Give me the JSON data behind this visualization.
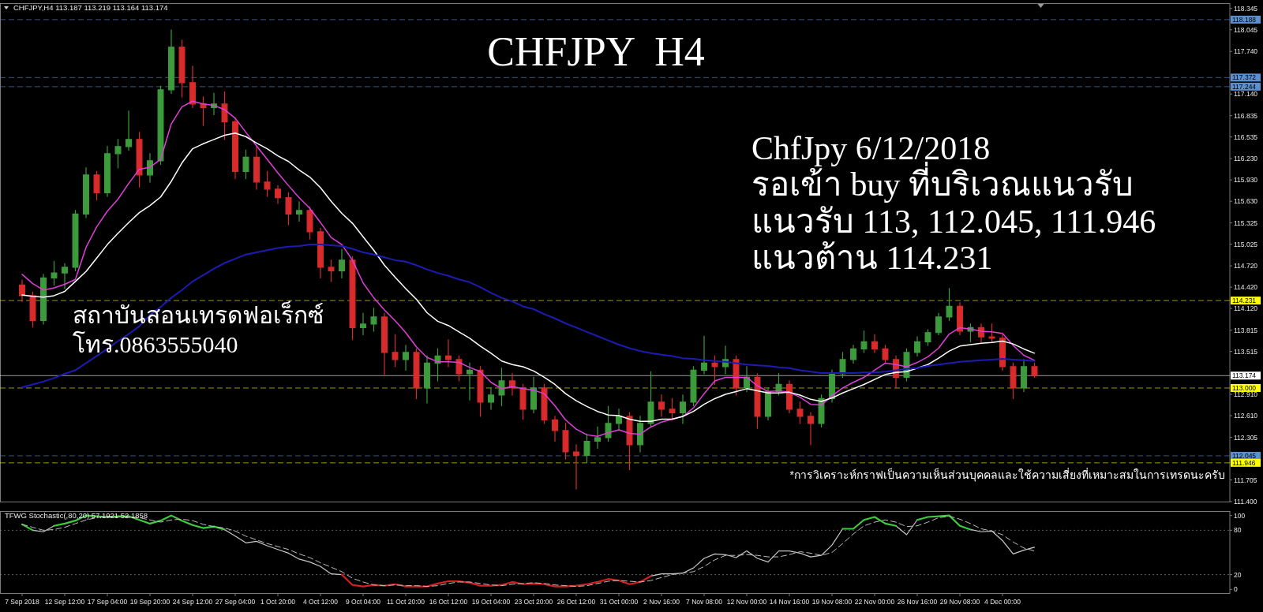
{
  "chart_data": [
    {
      "type": "candlestick",
      "title": "CHFJPY  H4",
      "annotations": [
        "CHFJPY,H4 113.187 113.219 113.164 113.174",
        "ChfJpy 6/12/2018",
        "รอเข้า buy ที่บริเวณแนวรับ",
        "แนวรับ 113, 112.045, 111.946",
        "แนวต้าน 114.231",
        "สถาบันสอนเทรดฟอเร็กซ์",
        "โทร.0863555040",
        "*การวิเคราะห์กราฟเป็นความเห็นส่วนบุคคลและใช้ความเสี่ยงที่เหมาะสมในการเทรดนะครับ"
      ],
      "categories": [
        null,
        null,
        null,
        null,
        null,
        null,
        null,
        null,
        null,
        null,
        null,
        null,
        null,
        null,
        null,
        null,
        null,
        null,
        null,
        null,
        null,
        null,
        null,
        null,
        null,
        null,
        null,
        null,
        null,
        null,
        null,
        null,
        null,
        null,
        null,
        null,
        null,
        null,
        null,
        null,
        null,
        null,
        null,
        null,
        null,
        null,
        null,
        null,
        null,
        null,
        null,
        null,
        null,
        null,
        null,
        null,
        null,
        null,
        null,
        null,
        null,
        null,
        null,
        null,
        null,
        null,
        null,
        null,
        null,
        null,
        null,
        null,
        null,
        null,
        null,
        null,
        null,
        null,
        null,
        null,
        null,
        null,
        null,
        null,
        null,
        null,
        null,
        null,
        null,
        null,
        null,
        null,
        null,
        null,
        null,
        null
      ],
      "ohlc": [
        [
          114.45,
          114.52,
          114.22,
          114.3
        ],
        [
          114.3,
          114.35,
          113.86,
          113.95
        ],
        [
          113.95,
          114.6,
          113.9,
          114.55
        ],
        [
          114.55,
          114.78,
          114.45,
          114.62
        ],
        [
          114.62,
          114.75,
          114.4,
          114.7
        ],
        [
          114.7,
          115.5,
          114.65,
          115.45
        ],
        [
          115.45,
          116.1,
          115.4,
          116.0
        ],
        [
          116.0,
          116.05,
          115.65,
          115.75
        ],
        [
          115.75,
          116.4,
          115.7,
          116.3
        ],
        [
          116.3,
          116.5,
          116.1,
          116.4
        ],
        [
          116.4,
          116.9,
          116.35,
          116.5
        ],
        [
          116.5,
          116.6,
          115.83,
          116.0
        ],
        [
          116.0,
          116.3,
          115.9,
          116.2
        ],
        [
          116.2,
          117.25,
          116.15,
          117.2
        ],
        [
          117.2,
          118.04,
          117.15,
          117.8
        ],
        [
          117.8,
          117.9,
          117.1,
          117.3
        ],
        [
          117.3,
          117.53,
          116.95,
          117.0
        ],
        [
          117.0,
          117.1,
          116.7,
          116.95
        ],
        [
          116.95,
          117.15,
          116.85,
          117.0
        ],
        [
          117.0,
          117.17,
          116.5,
          116.75
        ],
        [
          116.75,
          116.8,
          115.95,
          116.05
        ],
        [
          116.05,
          116.35,
          115.95,
          116.25
        ],
        [
          116.25,
          116.4,
          115.8,
          115.9
        ],
        [
          115.9,
          116.05,
          115.7,
          115.8
        ],
        [
          115.8,
          115.85,
          115.6,
          115.68
        ],
        [
          115.68,
          115.75,
          115.3,
          115.45
        ],
        [
          115.45,
          115.62,
          115.35,
          115.5
        ],
        [
          115.5,
          115.55,
          115.1,
          115.2
        ],
        [
          115.2,
          115.25,
          114.55,
          114.7
        ],
        [
          114.7,
          114.8,
          114.5,
          114.65
        ],
        [
          114.65,
          114.95,
          114.55,
          114.8
        ],
        [
          114.8,
          114.85,
          113.68,
          113.85
        ],
        [
          113.85,
          114.05,
          113.75,
          113.9
        ],
        [
          113.9,
          114.12,
          113.8,
          114.0
        ],
        [
          114.0,
          114.05,
          113.19,
          113.5
        ],
        [
          113.5,
          113.75,
          113.3,
          113.4
        ],
        [
          113.4,
          113.6,
          113.25,
          113.5
        ],
        [
          113.5,
          113.55,
          112.85,
          113.0
        ],
        [
          113.0,
          113.45,
          112.79,
          113.35
        ],
        [
          113.35,
          113.55,
          113.1,
          113.45
        ],
        [
          113.45,
          113.68,
          113.3,
          113.4
        ],
        [
          113.4,
          113.45,
          113.1,
          113.2
        ],
        [
          113.2,
          113.35,
          112.83,
          113.25
        ],
        [
          113.25,
          113.3,
          112.6,
          112.8
        ],
        [
          112.8,
          113.0,
          112.7,
          112.9
        ],
        [
          112.9,
          113.28,
          112.75,
          113.1
        ],
        [
          113.1,
          113.2,
          112.9,
          113.0
        ],
        [
          113.0,
          113.05,
          112.56,
          112.7
        ],
        [
          112.7,
          113.15,
          112.65,
          113.0
        ],
        [
          113.0,
          113.05,
          112.5,
          112.55
        ],
        [
          112.55,
          112.6,
          112.25,
          112.4
        ],
        [
          112.4,
          112.5,
          112.0,
          112.1
        ],
        [
          112.1,
          112.2,
          111.58,
          112.05
        ],
        [
          112.05,
          112.35,
          111.95,
          112.25
        ],
        [
          112.25,
          112.45,
          112.15,
          112.3
        ],
        [
          112.3,
          112.74,
          112.25,
          112.5
        ],
        [
          112.5,
          112.7,
          112.4,
          112.6
        ],
        [
          112.6,
          112.65,
          111.85,
          112.2
        ],
        [
          112.2,
          112.6,
          112.1,
          112.5
        ],
        [
          112.5,
          113.23,
          112.45,
          112.8
        ],
        [
          112.8,
          112.9,
          112.6,
          112.7
        ],
        [
          112.7,
          112.85,
          112.55,
          112.65
        ],
        [
          112.65,
          112.9,
          112.5,
          112.8
        ],
        [
          112.8,
          113.3,
          112.75,
          113.25
        ],
        [
          113.25,
          113.73,
          113.2,
          113.35
        ],
        [
          113.35,
          113.45,
          113.05,
          113.3
        ],
        [
          113.3,
          113.59,
          113.2,
          113.4
        ],
        [
          113.4,
          113.45,
          112.9,
          113.0
        ],
        [
          113.0,
          113.3,
          112.95,
          113.15
        ],
        [
          113.15,
          113.2,
          112.43,
          112.6
        ],
        [
          112.6,
          113.0,
          112.55,
          112.95
        ],
        [
          112.95,
          113.2,
          112.9,
          113.05
        ],
        [
          113.05,
          113.1,
          112.65,
          112.7
        ],
        [
          112.7,
          112.8,
          112.5,
          112.6
        ],
        [
          112.6,
          112.65,
          112.2,
          112.5
        ],
        [
          112.5,
          112.9,
          112.45,
          112.85
        ],
        [
          112.85,
          113.25,
          112.8,
          113.2
        ],
        [
          113.2,
          113.5,
          113.15,
          113.4
        ],
        [
          113.4,
          113.6,
          113.35,
          113.55
        ],
        [
          113.55,
          113.8,
          113.5,
          113.65
        ],
        [
          113.65,
          113.75,
          113.5,
          113.55
        ],
        [
          113.55,
          113.6,
          113.35,
          113.4
        ],
        [
          113.4,
          113.45,
          113.0,
          113.15
        ],
        [
          113.15,
          113.55,
          113.1,
          113.5
        ],
        [
          113.5,
          113.72,
          113.45,
          113.65
        ],
        [
          113.65,
          113.82,
          113.6,
          113.78
        ],
        [
          113.78,
          114.05,
          113.75,
          114.0
        ],
        [
          114.0,
          114.4,
          113.95,
          114.15
        ],
        [
          114.15,
          114.2,
          113.75,
          113.8
        ],
        [
          113.8,
          113.9,
          113.65,
          113.85
        ],
        [
          113.85,
          113.9,
          113.65,
          113.72
        ],
        [
          113.72,
          113.9,
          113.65,
          113.7
        ],
        [
          113.7,
          113.75,
          113.25,
          113.3
        ],
        [
          113.3,
          113.35,
          112.85,
          113.0
        ],
        [
          113.0,
          113.4,
          112.95,
          113.3
        ],
        [
          113.3,
          113.35,
          113.15,
          113.174
        ]
      ],
      "colors": [
        "#d92b2b",
        "#d92b2b",
        "#3c9c3c",
        "#3c9c3c",
        "#3c9c3c",
        "#3c9c3c",
        "#3c9c3c",
        "#d92b2b",
        "#3c9c3c",
        "#3c9c3c",
        "#3c9c3c",
        "#d92b2b",
        "#3c9c3c",
        "#3c9c3c",
        "#3c9c3c",
        "#d92b2b",
        "#d92b2b",
        "#d92b2b",
        "#3c9c3c",
        "#d92b2b",
        "#d92b2b",
        "#3c9c3c",
        "#d92b2b",
        "#d92b2b",
        "#d92b2b",
        "#d92b2b",
        "#3c9c3c",
        "#d92b2b",
        "#d92b2b",
        "#d92b2b",
        "#3c9c3c",
        "#d92b2b",
        "#3c9c3c",
        "#3c9c3c",
        "#d92b2b",
        "#d92b2b",
        "#3c9c3c",
        "#d92b2b",
        "#3c9c3c",
        "#3c9c3c",
        "#d92b2b",
        "#d92b2b",
        "#3c9c3c",
        "#d92b2b",
        "#3c9c3c",
        "#3c9c3c",
        "#d92b2b",
        "#d92b2b",
        "#3c9c3c",
        "#d92b2b",
        "#d92b2b",
        "#d92b2b",
        "#d92b2b",
        "#3c9c3c",
        "#3c9c3c",
        "#3c9c3c",
        "#3c9c3c",
        "#d92b2b",
        "#3c9c3c",
        "#3c9c3c",
        "#d92b2b",
        "#d92b2b",
        "#3c9c3c",
        "#3c9c3c",
        "#3c9c3c",
        "#d92b2b",
        "#3c9c3c",
        "#d92b2b",
        "#3c9c3c",
        "#d92b2b",
        "#3c9c3c",
        "#3c9c3c",
        "#d92b2b",
        "#d92b2b",
        "#d92b2b",
        "#3c9c3c",
        "#3c9c3c",
        "#3c9c3c",
        "#3c9c3c",
        "#3c9c3c",
        "#d92b2b",
        "#d92b2b",
        "#d92b2b",
        "#3c9c3c",
        "#3c9c3c",
        "#3c9c3c",
        "#3c9c3c",
        "#3c9c3c",
        "#d92b2b",
        "#3c9c3c",
        "#d92b2b",
        "#d92b2b",
        "#d92b2b",
        "#d92b2b",
        "#3c9c3c",
        "#d92b2b"
      ],
      "series": [
        {
          "type": "line",
          "color": "#e03ed8",
          "values": [
            114.6,
            114.47,
            114.38,
            114.41,
            114.46,
            114.53,
            114.98,
            115.27,
            115.49,
            115.66,
            115.88,
            116.08,
            116.11,
            116.22,
            116.72,
            116.96,
            117.04,
            117.0,
            116.98,
            116.92,
            116.8,
            116.6,
            116.41,
            116.22,
            116.03,
            115.85,
            115.68,
            115.53,
            115.33,
            115.12,
            115.02,
            114.8,
            114.48,
            114.27,
            114.1,
            113.95,
            113.78,
            113.58,
            113.43,
            113.37,
            113.37,
            113.36,
            113.29,
            113.23,
            113.08,
            112.99,
            113.02,
            112.99,
            112.97,
            112.92,
            112.75,
            112.55,
            112.42,
            112.34,
            112.32,
            112.37,
            112.41,
            112.36,
            112.35,
            112.45,
            112.52,
            112.56,
            112.6,
            112.72,
            112.92,
            113.1,
            113.15,
            113.15,
            113.15,
            113.03,
            112.95,
            112.96,
            112.94,
            112.87,
            112.77,
            112.76,
            112.89,
            113.0,
            113.08,
            113.15,
            113.25,
            113.35,
            113.33,
            113.3,
            113.36,
            113.44,
            113.56,
            113.76,
            113.85,
            113.83,
            113.8,
            113.79,
            113.77,
            113.6,
            113.46,
            113.39
          ]
        },
        {
          "type": "line",
          "color": "#ffffff",
          "values": [
            114.31,
            114.29,
            114.28,
            114.3,
            114.36,
            114.5,
            114.64,
            114.83,
            115.02,
            115.18,
            115.33,
            115.47,
            115.57,
            115.69,
            115.91,
            116.17,
            116.37,
            116.44,
            116.5,
            116.56,
            116.59,
            116.54,
            116.45,
            116.37,
            116.27,
            116.19,
            116.07,
            115.97,
            115.82,
            115.63,
            115.46,
            115.32,
            115.13,
            114.94,
            114.73,
            114.56,
            114.4,
            114.25,
            114.06,
            113.94,
            113.88,
            113.79,
            113.7,
            113.59,
            113.49,
            113.38,
            113.33,
            113.3,
            113.24,
            113.15,
            113.05,
            112.92,
            112.82,
            112.74,
            112.67,
            112.62,
            112.61,
            112.56,
            112.53,
            112.53,
            112.56,
            112.56,
            112.6,
            112.67,
            112.77,
            112.85,
            112.91,
            112.95,
            112.99,
            112.96,
            112.93,
            112.93,
            112.94,
            112.9,
            112.84,
            112.81,
            112.86,
            112.93,
            112.99,
            113.05,
            113.12,
            113.19,
            113.22,
            113.23,
            113.28,
            113.33,
            113.42,
            113.52,
            113.59,
            113.61,
            113.63,
            113.64,
            113.66,
            113.62,
            113.55,
            113.49
          ]
        },
        {
          "type": "line",
          "color": "#1c1cb4",
          "values": [
            113.01,
            113.05,
            113.09,
            113.14,
            113.2,
            113.25,
            113.35,
            113.45,
            113.55,
            113.66,
            113.76,
            113.87,
            114.03,
            114.14,
            114.27,
            114.38,
            114.5,
            114.59,
            114.68,
            114.76,
            114.82,
            114.88,
            114.91,
            114.94,
            114.97,
            114.99,
            115.0,
            115.02,
            115.02,
            115.01,
            115.0,
            114.96,
            114.91,
            114.88,
            114.84,
            114.8,
            114.78,
            114.73,
            114.67,
            114.62,
            114.58,
            114.53,
            114.49,
            114.42,
            114.34,
            114.27,
            114.22,
            114.15,
            114.11,
            114.04,
            113.98,
            113.91,
            113.85,
            113.79,
            113.73,
            113.67,
            113.61,
            113.56,
            113.52,
            113.49,
            113.47,
            113.45,
            113.42,
            113.41,
            113.39,
            113.38,
            113.37,
            113.35,
            113.33,
            113.32,
            113.31,
            113.29,
            113.28,
            113.25,
            113.23,
            113.21,
            113.21,
            113.21,
            113.21,
            113.22,
            113.22,
            113.23,
            113.25,
            113.27,
            113.28,
            113.31,
            113.33,
            113.35,
            113.37,
            113.38,
            113.39,
            113.4,
            113.41,
            113.4,
            113.39,
            113.38
          ]
        }
      ],
      "ylim": [
        111.4,
        118.42
      ],
      "yticks": [
        118.345,
        118.045,
        {
          "value": 117.74,
          "label": "117.740"
        },
        {
          "value": 117.14,
          "label": "117.140"
        },
        116.835,
        116.535,
        {
          "value": 116.23,
          "label": "116.230"
        },
        {
          "value": 115.93,
          "label": "115.930"
        },
        {
          "value": 115.63,
          "label": "115.630"
        },
        115.325,
        115.025,
        {
          "value": 114.72,
          "label": "114.720"
        },
        {
          "value": 114.42,
          "label": "114.420"
        },
        {
          "value": 114.12,
          "label": "114.120"
        },
        113.815,
        113.515,
        {
          "value": 112.91,
          "label": "112.910"
        },
        {
          "value": 112.61,
          "label": "112.610"
        },
        112.305,
        111.705,
        {
          "value": 111.4,
          "label": "111.400"
        }
      ],
      "ref_lines": [
        {
          "axis": "y",
          "value": 118.188,
          "label": "118.188",
          "color": "#5b8fd0",
          "line_style": "dashed"
        },
        {
          "axis": "y",
          "value": 117.372,
          "label": "117.372",
          "color": "#5b8fd0",
          "line_style": "dashed"
        },
        {
          "axis": "y",
          "value": 117.244,
          "label": "117.244",
          "color": "#5b8fd0",
          "line_style": "dashed"
        },
        {
          "axis": "y",
          "value": 114.231,
          "label": "114.231",
          "color": "#ffff00",
          "line_style": "dashed"
        },
        {
          "axis": "y",
          "value": 113.174,
          "label": "113.174",
          "color": "#ffffff",
          "line_style": "solid"
        },
        {
          "axis": "y",
          "value": 113.0,
          "label": "113.000",
          "color": "#ffff00",
          "line_style": "dashed"
        },
        {
          "axis": "y",
          "value": 112.045,
          "label": "112.045",
          "color": "#5b8fd0",
          "line_style": "dashed"
        },
        {
          "axis": "y",
          "value": 111.946,
          "label": "111.946",
          "color": "#ffff00",
          "line_style": "dashed"
        }
      ],
      "tick_labels": "y"
    },
    {
      "type": "line",
      "title": "TFWG Stochastic(,80,20) 57.1921 52.1858",
      "categories": [
        "7 Sep 2018",
        null,
        null,
        null,
        "12 Sep 12:00",
        null,
        null,
        null,
        "17 Sep 04:00",
        null,
        null,
        null,
        "19 Sep 20:00",
        null,
        null,
        null,
        "24 Sep 12:00",
        null,
        null,
        null,
        "27 Sep 04:00",
        null,
        null,
        null,
        "1 Oct 20:00",
        null,
        null,
        null,
        "4 Oct 12:00",
        null,
        null,
        null,
        "9 Oct 04:00",
        null,
        null,
        null,
        "11 Oct 20:00",
        null,
        null,
        null,
        "16 Oct 12:00",
        null,
        null,
        null,
        "19 Oct 04:00",
        null,
        null,
        null,
        "23 Oct 20:00",
        null,
        null,
        null,
        "26 Oct 12:00",
        null,
        null,
        null,
        "31 Oct 00:00",
        null,
        null,
        null,
        "2 Nov 16:00",
        null,
        null,
        null,
        "7 Nov 08:00",
        null,
        null,
        null,
        "12 Nov 00:00",
        null,
        null,
        null,
        "14 Nov 16:00",
        null,
        null,
        null,
        "19 Nov 08:00",
        null,
        null,
        null,
        "22 Nov 00:00",
        null,
        null,
        null,
        "26 Nov 16:00",
        null,
        null,
        null,
        "29 Nov 08:00",
        null,
        null,
        null,
        "4 Dec 00:00",
        null,
        null,
        null
      ],
      "series": [
        {
          "color": "#c8c8c8",
          "values": [
            null,
            80,
            78,
            86,
            null,
            null,
            null,
            null,
            null,
            null,
            null,
            null,
            null,
            null,
            null,
            null,
            null,
            null,
            null,
            81,
            72,
            63,
            65,
            59,
            54,
            49,
            41,
            37,
            31,
            21,
            20,
            null,
            null,
            null,
            null,
            null,
            null,
            null,
            null,
            null,
            null,
            null,
            null,
            null,
            null,
            null,
            null,
            null,
            null,
            null,
            null,
            null,
            null,
            null,
            null,
            null,
            null,
            null,
            null,
            18,
            21,
            21,
            22,
            29,
            42,
            48,
            47,
            43,
            52,
            42,
            37,
            52,
            52,
            49,
            44,
            46,
            60,
            82,
            null,
            null,
            null,
            null,
            86,
            74,
            94,
            null,
            null,
            null,
            null,
            81,
            78,
            79,
            66,
            48,
            53,
            57
          ]
        },
        {
          "color": "#3ccc3c",
          "values": [
            88,
            80,
            null,
            86,
            89,
            93,
            100,
            99,
            98,
            99,
            99,
            94,
            89,
            93,
            100,
            93,
            87,
            83,
            85,
            81,
            null,
            null,
            null,
            null,
            null,
            null,
            null,
            null,
            null,
            null,
            null,
            null,
            null,
            null,
            null,
            null,
            null,
            null,
            null,
            null,
            null,
            null,
            null,
            null,
            null,
            null,
            null,
            null,
            null,
            null,
            null,
            null,
            null,
            null,
            null,
            null,
            null,
            null,
            null,
            null,
            null,
            null,
            null,
            null,
            null,
            null,
            null,
            null,
            null,
            null,
            null,
            null,
            null,
            null,
            null,
            null,
            null,
            82,
            82,
            94,
            98,
            89,
            86,
            null,
            94,
            98,
            99,
            100,
            86,
            81,
            null,
            null,
            null,
            null,
            null,
            null
          ]
        },
        {
          "color": "#d42020",
          "values": [
            null,
            null,
            null,
            null,
            null,
            null,
            null,
            null,
            null,
            null,
            null,
            null,
            null,
            null,
            null,
            null,
            null,
            null,
            null,
            null,
            null,
            null,
            null,
            null,
            null,
            null,
            null,
            null,
            null,
            null,
            20,
            6,
            4,
            6,
            5,
            7,
            4,
            4,
            4,
            8,
            11,
            11,
            9,
            5,
            5,
            6,
            10,
            7,
            8,
            7,
            4,
            4,
            5,
            7,
            10,
            14,
            12,
            7,
            10,
            18,
            null,
            null,
            null,
            null,
            null,
            null,
            null,
            null,
            null,
            null,
            null,
            null,
            null,
            null,
            null,
            null,
            null,
            null,
            null,
            null,
            null,
            null,
            null,
            null,
            null,
            null,
            null,
            null,
            null,
            null,
            null,
            null,
            null,
            null,
            null,
            null
          ]
        },
        {
          "color": "#bdbdbd",
          "line_style": "dashed",
          "values": [
            88,
            84,
            80,
            81,
            84,
            89,
            94,
            97,
            99,
            98,
            98,
            97,
            94,
            91,
            94,
            95,
            93,
            88,
            85,
            83,
            79,
            72,
            67,
            62,
            58,
            54,
            48,
            43,
            36,
            30,
            24,
            15,
            10,
            6,
            5,
            6,
            5,
            5,
            4,
            5,
            8,
            10,
            10,
            8,
            6,
            5,
            7,
            8,
            9,
            8,
            6,
            5,
            4,
            5,
            8,
            11,
            12,
            11,
            10,
            12,
            16,
            20,
            22,
            24,
            31,
            40,
            46,
            46,
            47,
            46,
            44,
            44,
            47,
            51,
            49,
            46,
            50,
            62,
            75,
            86,
            91,
            94,
            91,
            85,
            86,
            91,
            97,
            99,
            95,
            89,
            82,
            79,
            74,
            64,
            56,
            52
          ]
        }
      ],
      "ylim": [
        -5,
        106
      ],
      "yticks": [
        0,
        20,
        80,
        100
      ],
      "ref_lines": [
        {
          "axis": "y",
          "value": 80,
          "color": "#9a9a9a",
          "line_style": "dotted"
        },
        {
          "axis": "y",
          "value": 20,
          "color": "#9a9a9a",
          "line_style": "dotted"
        }
      ]
    }
  ]
}
